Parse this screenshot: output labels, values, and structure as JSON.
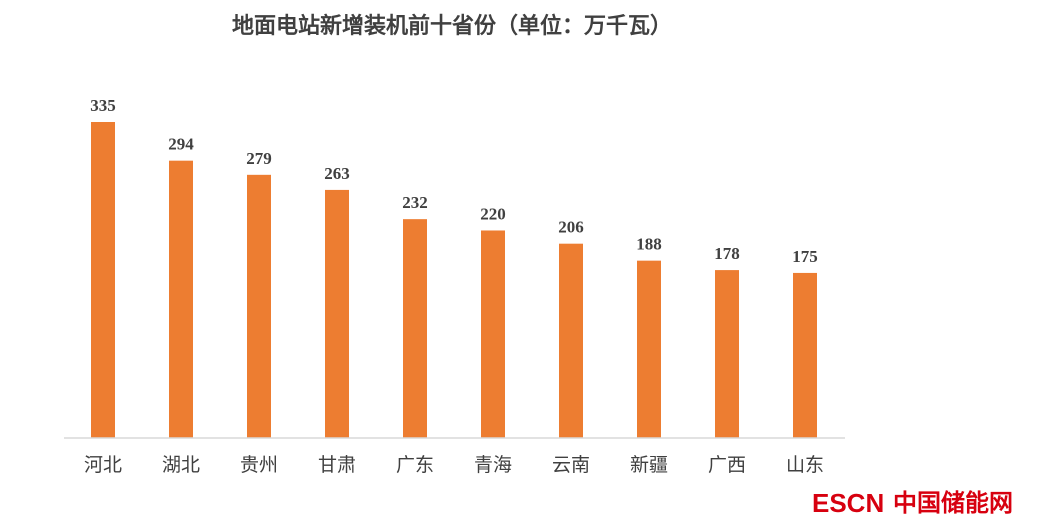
{
  "chart_data": {
    "type": "bar",
    "title": "地面电站新增装机前十省份（单位：万千瓦）",
    "categories": [
      "河北",
      "湖北",
      "贵州",
      "甘肃",
      "广东",
      "青海",
      "云南",
      "新疆",
      "广西",
      "山东"
    ],
    "values": [
      335,
      294,
      279,
      263,
      232,
      220,
      206,
      188,
      178,
      175
    ],
    "xlabel": "",
    "ylabel": "",
    "ylim": [
      0,
      335
    ],
    "grid": false,
    "bar_color": "#ED7D31",
    "axis_color": "#D9D9D9"
  },
  "watermark": {
    "latin": "ESCN",
    "cjk": "中国储能网",
    "latin_color": "#D7000F",
    "cjk_color": "#D7000F"
  }
}
